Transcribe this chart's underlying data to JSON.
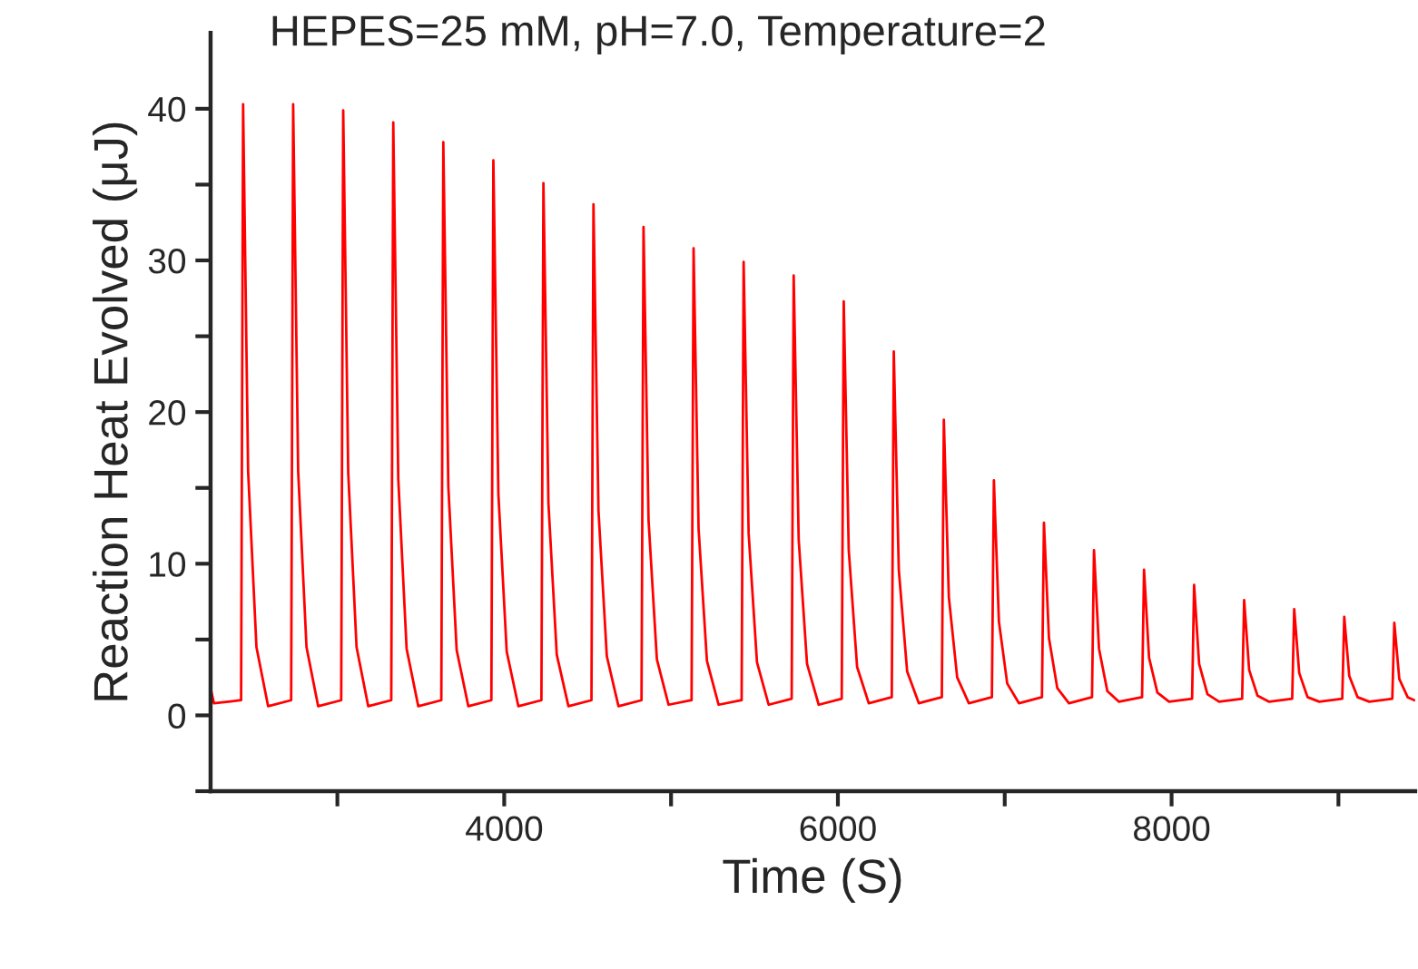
{
  "chart_data": {
    "type": "line",
    "title": "HEPES=25 mM, pH=7.0, Temperature=2",
    "xlabel": "Time (S)",
    "ylabel": "Reaction Heat Evolved (μJ)",
    "x": [
      2240,
      2260,
      2423,
      2435,
      2465,
      2515,
      2585,
      2723,
      2735,
      2765,
      2815,
      2885,
      3023,
      3035,
      3065,
      3115,
      3185,
      3323,
      3335,
      3365,
      3415,
      3485,
      3623,
      3635,
      3665,
      3715,
      3785,
      3923,
      3935,
      3965,
      4015,
      4085,
      4223,
      4235,
      4265,
      4315,
      4385,
      4523,
      4535,
      4565,
      4615,
      4685,
      4823,
      4835,
      4865,
      4915,
      4985,
      5123,
      5135,
      5165,
      5215,
      5285,
      5423,
      5435,
      5465,
      5515,
      5585,
      5723,
      5735,
      5765,
      5815,
      5885,
      6023,
      6035,
      6065,
      6115,
      6185,
      6323,
      6335,
      6365,
      6415,
      6485,
      6623,
      6635,
      6665,
      6715,
      6785,
      6923,
      6935,
      6965,
      7015,
      7085,
      7223,
      7235,
      7265,
      7315,
      7385,
      7523,
      7535,
      7565,
      7615,
      7685,
      7823,
      7835,
      7865,
      7915,
      7985,
      8123,
      8135,
      8165,
      8215,
      8285,
      8423,
      8435,
      8465,
      8515,
      8585,
      8723,
      8735,
      8765,
      8815,
      8885,
      9023,
      9035,
      9065,
      9115,
      9185,
      9323,
      9335,
      9365,
      9415,
      9455
    ],
    "series": [
      {
        "color": "#ff0000",
        "values": [
          1.8,
          0.8,
          1.0,
          40.3,
          16.1,
          4.5,
          0.6,
          1.0,
          40.3,
          16.1,
          4.5,
          0.6,
          1.0,
          39.9,
          16.0,
          4.5,
          0.6,
          1.0,
          39.1,
          15.6,
          4.4,
          0.6,
          1.0,
          37.8,
          15.1,
          4.3,
          0.6,
          1.0,
          36.6,
          14.6,
          4.2,
          0.6,
          1.0,
          35.1,
          14.0,
          4.0,
          0.6,
          1.0,
          33.7,
          13.5,
          3.9,
          0.6,
          1.0,
          32.2,
          12.9,
          3.7,
          0.7,
          1.0,
          30.8,
          12.3,
          3.6,
          0.7,
          1.0,
          29.9,
          12.0,
          3.5,
          0.7,
          1.1,
          29.0,
          11.6,
          3.4,
          0.7,
          1.1,
          27.3,
          10.9,
          3.2,
          0.8,
          1.2,
          24.0,
          9.6,
          2.9,
          0.8,
          1.2,
          19.5,
          7.8,
          2.5,
          0.8,
          1.2,
          15.5,
          6.2,
          2.1,
          0.8,
          1.2,
          12.7,
          5.1,
          1.8,
          0.8,
          1.2,
          10.9,
          4.4,
          1.6,
          0.9,
          1.2,
          9.6,
          3.8,
          1.5,
          0.9,
          1.1,
          8.6,
          3.4,
          1.4,
          0.9,
          1.1,
          7.6,
          3.0,
          1.3,
          0.9,
          1.1,
          7.0,
          2.8,
          1.2,
          0.9,
          1.1,
          6.5,
          2.6,
          1.2,
          0.9,
          1.1,
          6.1,
          2.4,
          1.2,
          1.0
        ]
      }
    ],
    "xlim": [
      2240,
      9460
    ],
    "xticks": [
      {
        "value": 3000,
        "label": null
      },
      4000,
      {
        "value": 5000,
        "label": null
      },
      6000,
      {
        "value": 7000,
        "label": null
      },
      8000,
      {
        "value": 9000,
        "label": null
      }
    ],
    "ylim": [
      -5,
      45
    ],
    "yticks": [
      {
        "value": -5,
        "label": null
      },
      0,
      {
        "value": 5,
        "label": null
      },
      10,
      {
        "value": 15,
        "label": null
      },
      20,
      {
        "value": 25,
        "label": null
      },
      30,
      {
        "value": 35,
        "label": null
      },
      40
    ],
    "grid": false,
    "legend": false,
    "marker": "none",
    "line_style": "solid"
  }
}
